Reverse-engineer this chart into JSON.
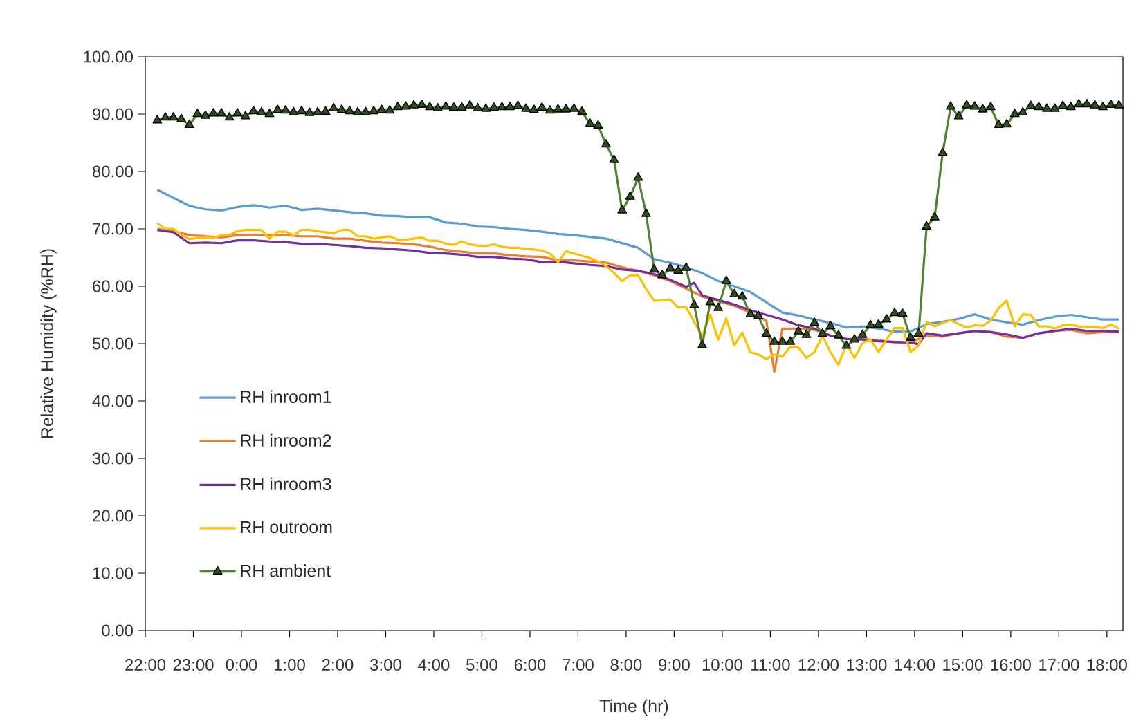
{
  "chart_data": {
    "type": "line",
    "xlabel": "Time (hr)",
    "ylabel": "Relative Humidity (%RH)",
    "xlim": [
      "2000-01-01T22:00",
      "2000-01-02T18:20"
    ],
    "ylim": [
      0,
      100
    ],
    "xticks": [
      {
        "value": "2000-01-01T22:00",
        "label": "22:00"
      },
      {
        "value": "2000-01-01T23:00",
        "label": "23:00"
      },
      {
        "value": "2000-01-02T00:00",
        "label": "0:00"
      },
      {
        "value": "2000-01-02T01:00",
        "label": "1:00"
      },
      {
        "value": "2000-01-02T02:00",
        "label": "2:00"
      },
      {
        "value": "2000-01-02T03:00",
        "label": "3:00"
      },
      {
        "value": "2000-01-02T04:00",
        "label": "4:00"
      },
      {
        "value": "2000-01-02T05:00",
        "label": "5:00"
      },
      {
        "value": "2000-01-02T06:00",
        "label": "6:00"
      },
      {
        "value": "2000-01-02T07:00",
        "label": "7:00"
      },
      {
        "value": "2000-01-02T08:00",
        "label": "8:00"
      },
      {
        "value": "2000-01-02T09:00",
        "label": "9:00"
      },
      {
        "value": "2000-01-02T10:00",
        "label": "10:00"
      },
      {
        "value": "2000-01-02T11:00",
        "label": "11:00"
      },
      {
        "value": "2000-01-02T12:00",
        "label": "12:00"
      },
      {
        "value": "2000-01-02T13:00",
        "label": "13:00"
      },
      {
        "value": "2000-01-02T14:00",
        "label": "14:00"
      },
      {
        "value": "2000-01-02T15:00",
        "label": "15:00"
      },
      {
        "value": "2000-01-02T16:00",
        "label": "16:00"
      },
      {
        "value": "2000-01-02T17:00",
        "label": "17:00"
      },
      {
        "value": "2000-01-02T18:00",
        "label": "18:00"
      }
    ],
    "yticks": [
      {
        "value": 0,
        "label": "0.00"
      },
      {
        "value": 10,
        "label": "10.00"
      },
      {
        "value": 20,
        "label": "20.00"
      },
      {
        "value": 30,
        "label": "30.00"
      },
      {
        "value": 40,
        "label": "40.00"
      },
      {
        "value": 50,
        "label": "50.00"
      },
      {
        "value": 60,
        "label": "60.00"
      },
      {
        "value": 70,
        "label": "70.00"
      },
      {
        "value": 80,
        "label": "80.00"
      },
      {
        "value": 90,
        "label": "90.00"
      },
      {
        "value": 100,
        "label": "100.00"
      }
    ],
    "legend": "bottom left",
    "grid": false,
    "x": [
      "2000-01-01T22:15",
      "2000-01-01T22:25",
      "2000-01-01T22:35",
      "2000-01-01T22:45",
      "2000-01-01T22:55",
      "2000-01-01T23:05",
      "2000-01-01T23:15",
      "2000-01-01T23:25",
      "2000-01-01T23:35",
      "2000-01-01T23:45",
      "2000-01-01T23:55",
      "2000-01-02T00:05",
      "2000-01-02T00:15",
      "2000-01-02T00:25",
      "2000-01-02T00:35",
      "2000-01-02T00:45",
      "2000-01-02T00:55",
      "2000-01-02T01:05",
      "2000-01-02T01:15",
      "2000-01-02T01:25",
      "2000-01-02T01:35",
      "2000-01-02T01:45",
      "2000-01-02T01:55",
      "2000-01-02T02:05",
      "2000-01-02T02:15",
      "2000-01-02T02:25",
      "2000-01-02T02:35",
      "2000-01-02T02:45",
      "2000-01-02T02:55",
      "2000-01-02T03:05",
      "2000-01-02T03:15",
      "2000-01-02T03:25",
      "2000-01-02T03:35",
      "2000-01-02T03:45",
      "2000-01-02T03:55",
      "2000-01-02T04:05",
      "2000-01-02T04:15",
      "2000-01-02T04:25",
      "2000-01-02T04:35",
      "2000-01-02T04:45",
      "2000-01-02T04:55",
      "2000-01-02T05:05",
      "2000-01-02T05:15",
      "2000-01-02T05:25",
      "2000-01-02T05:35",
      "2000-01-02T05:45",
      "2000-01-02T05:55",
      "2000-01-02T06:05",
      "2000-01-02T06:15",
      "2000-01-02T06:25",
      "2000-01-02T06:35",
      "2000-01-02T06:45",
      "2000-01-02T06:55",
      "2000-01-02T07:05",
      "2000-01-02T07:15",
      "2000-01-02T07:25",
      "2000-01-02T07:35",
      "2000-01-02T07:45",
      "2000-01-02T07:55",
      "2000-01-02T08:05",
      "2000-01-02T08:15",
      "2000-01-02T08:25",
      "2000-01-02T08:35",
      "2000-01-02T08:45",
      "2000-01-02T08:55",
      "2000-01-02T09:05",
      "2000-01-02T09:15",
      "2000-01-02T09:25",
      "2000-01-02T09:35",
      "2000-01-02T09:45",
      "2000-01-02T09:55",
      "2000-01-02T10:05",
      "2000-01-02T10:15",
      "2000-01-02T10:25",
      "2000-01-02T10:35",
      "2000-01-02T10:45",
      "2000-01-02T10:55",
      "2000-01-02T11:05",
      "2000-01-02T11:15",
      "2000-01-02T11:25",
      "2000-01-02T11:35",
      "2000-01-02T11:45",
      "2000-01-02T11:55",
      "2000-01-02T12:05",
      "2000-01-02T12:15",
      "2000-01-02T12:25",
      "2000-01-02T12:35",
      "2000-01-02T12:45",
      "2000-01-02T12:55",
      "2000-01-02T13:05",
      "2000-01-02T13:15",
      "2000-01-02T13:25",
      "2000-01-02T13:35",
      "2000-01-02T13:45",
      "2000-01-02T13:55",
      "2000-01-02T14:05",
      "2000-01-02T14:15",
      "2000-01-02T14:25",
      "2000-01-02T14:35",
      "2000-01-02T14:45",
      "2000-01-02T14:55",
      "2000-01-02T15:05",
      "2000-01-02T15:15",
      "2000-01-02T15:25",
      "2000-01-02T15:35",
      "2000-01-02T15:45",
      "2000-01-02T15:55",
      "2000-01-02T16:05",
      "2000-01-02T16:15",
      "2000-01-02T16:25",
      "2000-01-02T16:35",
      "2000-01-02T16:45",
      "2000-01-02T16:55",
      "2000-01-02T17:05",
      "2000-01-02T17:15",
      "2000-01-02T17:25",
      "2000-01-02T17:35",
      "2000-01-02T17:45",
      "2000-01-02T17:55",
      "2000-01-02T18:05",
      "2000-01-02T18:15"
    ],
    "series": [
      {
        "name": "RH inroom1",
        "color": "#5b9bd5",
        "x": [
          "2000-01-01T22:15",
          "2000-01-01T22:35",
          "2000-01-01T22:55",
          "2000-01-01T23:15",
          "2000-01-01T23:35",
          "2000-01-01T23:55",
          "2000-01-02T00:15",
          "2000-01-02T00:35",
          "2000-01-02T00:55",
          "2000-01-02T01:15",
          "2000-01-02T01:35",
          "2000-01-02T01:55",
          "2000-01-02T02:15",
          "2000-01-02T02:35",
          "2000-01-02T02:55",
          "2000-01-02T03:15",
          "2000-01-02T03:35",
          "2000-01-02T03:55",
          "2000-01-02T04:15",
          "2000-01-02T04:35",
          "2000-01-02T04:55",
          "2000-01-02T05:15",
          "2000-01-02T05:35",
          "2000-01-02T05:55",
          "2000-01-02T06:15",
          "2000-01-02T06:35",
          "2000-01-02T06:55",
          "2000-01-02T07:15",
          "2000-01-02T07:35",
          "2000-01-02T07:55",
          "2000-01-02T08:15",
          "2000-01-02T08:35",
          "2000-01-02T08:55",
          "2000-01-02T09:15",
          "2000-01-02T09:35",
          "2000-01-02T09:55",
          "2000-01-02T10:15",
          "2000-01-02T10:35",
          "2000-01-02T10:55",
          "2000-01-02T11:15",
          "2000-01-02T11:35",
          "2000-01-02T11:55",
          "2000-01-02T12:15",
          "2000-01-02T12:35",
          "2000-01-02T12:55",
          "2000-01-02T13:15",
          "2000-01-02T13:35",
          "2000-01-02T13:55",
          "2000-01-02T14:15",
          "2000-01-02T14:35",
          "2000-01-02T14:55",
          "2000-01-02T15:15",
          "2000-01-02T15:35",
          "2000-01-02T15:55",
          "2000-01-02T16:15",
          "2000-01-02T16:35",
          "2000-01-02T16:55",
          "2000-01-02T17:15",
          "2000-01-02T17:35",
          "2000-01-02T17:55",
          "2000-01-02T18:15"
        ],
        "values": [
          76.8,
          75.4,
          74.0,
          73.4,
          73.2,
          73.8,
          74.1,
          73.7,
          74.0,
          73.3,
          73.5,
          73.2,
          72.9,
          72.7,
          72.3,
          72.2,
          72.0,
          72.0,
          71.1,
          70.9,
          70.4,
          70.3,
          70.0,
          69.8,
          69.5,
          69.1,
          68.9,
          68.6,
          68.3,
          67.5,
          66.7,
          64.7,
          64.1,
          63.3,
          62.3,
          60.9,
          60.0,
          59.0,
          57.2,
          55.4,
          54.9,
          54.2,
          53.6,
          52.8,
          53.0,
          52.6,
          52.1,
          52.1,
          53.4,
          53.8,
          54.3,
          55.1,
          54.2,
          53.7,
          53.3,
          54.1,
          54.7,
          55.0,
          54.6,
          54.2,
          54.2
        ]
      },
      {
        "name": "RH inroom2",
        "color": "#ed7d31",
        "x": [
          "2000-01-01T22:15",
          "2000-01-01T22:35",
          "2000-01-01T22:55",
          "2000-01-01T23:15",
          "2000-01-01T23:35",
          "2000-01-01T23:55",
          "2000-01-02T00:15",
          "2000-01-02T00:35",
          "2000-01-02T00:55",
          "2000-01-02T01:15",
          "2000-01-02T01:35",
          "2000-01-02T01:55",
          "2000-01-02T02:15",
          "2000-01-02T02:35",
          "2000-01-02T02:55",
          "2000-01-02T03:15",
          "2000-01-02T03:35",
          "2000-01-02T03:55",
          "2000-01-02T04:15",
          "2000-01-02T04:35",
          "2000-01-02T04:55",
          "2000-01-02T05:15",
          "2000-01-02T05:35",
          "2000-01-02T05:55",
          "2000-01-02T06:15",
          "2000-01-02T06:35",
          "2000-01-02T06:55",
          "2000-01-02T07:15",
          "2000-01-02T07:35",
          "2000-01-02T07:55",
          "2000-01-02T08:15",
          "2000-01-02T08:35",
          "2000-01-02T08:55",
          "2000-01-02T09:15",
          "2000-01-02T09:35",
          "2000-01-02T09:55",
          "2000-01-02T10:15",
          "2000-01-02T10:35",
          "2000-01-02T10:55",
          "2000-01-02T11:05",
          "2000-01-02T11:15",
          "2000-01-02T11:35",
          "2000-01-02T11:55",
          "2000-01-02T12:15",
          "2000-01-02T12:35",
          "2000-01-02T12:55",
          "2000-01-02T13:15",
          "2000-01-02T13:35",
          "2000-01-02T13:55",
          "2000-01-02T14:15",
          "2000-01-02T14:35",
          "2000-01-02T14:55",
          "2000-01-02T15:15",
          "2000-01-02T15:35",
          "2000-01-02T15:55",
          "2000-01-02T16:15",
          "2000-01-02T16:35",
          "2000-01-02T16:55",
          "2000-01-02T17:15",
          "2000-01-02T17:35",
          "2000-01-02T17:55",
          "2000-01-02T18:15"
        ],
        "values": [
          70.0,
          69.6,
          68.9,
          68.7,
          68.5,
          68.9,
          69.0,
          68.9,
          68.9,
          68.7,
          68.7,
          68.3,
          68.3,
          67.9,
          67.6,
          67.5,
          67.3,
          66.9,
          66.3,
          66.0,
          65.7,
          65.7,
          65.4,
          65.2,
          65.1,
          64.5,
          64.5,
          64.3,
          64.1,
          63.3,
          62.7,
          61.9,
          60.9,
          59.6,
          58.2,
          57.4,
          56.6,
          55.4,
          54.0,
          45.1,
          52.6,
          52.6,
          52.4,
          51.4,
          50.8,
          50.8,
          50.6,
          50.2,
          50.2,
          51.4,
          51.2,
          51.8,
          52.2,
          52.0,
          51.2,
          51.0,
          51.8,
          52.2,
          52.4,
          51.8,
          52.0,
          52.0
        ]
      },
      {
        "name": "RH inroom3",
        "color": "#7030a0",
        "x": [
          "2000-01-01T22:15",
          "2000-01-01T22:35",
          "2000-01-01T22:55",
          "2000-01-01T23:15",
          "2000-01-01T23:35",
          "2000-01-01T23:55",
          "2000-01-02T00:15",
          "2000-01-02T00:35",
          "2000-01-02T00:55",
          "2000-01-02T01:15",
          "2000-01-02T01:35",
          "2000-01-02T01:55",
          "2000-01-02T02:15",
          "2000-01-02T02:35",
          "2000-01-02T02:55",
          "2000-01-02T03:15",
          "2000-01-02T03:35",
          "2000-01-02T03:55",
          "2000-01-02T04:15",
          "2000-01-02T04:35",
          "2000-01-02T04:55",
          "2000-01-02T05:15",
          "2000-01-02T05:35",
          "2000-01-02T05:55",
          "2000-01-02T06:15",
          "2000-01-02T06:35",
          "2000-01-02T06:55",
          "2000-01-02T07:15",
          "2000-01-02T07:35",
          "2000-01-02T07:55",
          "2000-01-02T08:15",
          "2000-01-02T08:35",
          "2000-01-02T08:55",
          "2000-01-02T09:15",
          "2000-01-02T09:25",
          "2000-01-02T09:35",
          "2000-01-02T09:55",
          "2000-01-02T10:15",
          "2000-01-02T10:35",
          "2000-01-02T10:55",
          "2000-01-02T11:15",
          "2000-01-02T11:35",
          "2000-01-02T11:55",
          "2000-01-02T12:15",
          "2000-01-02T12:35",
          "2000-01-02T12:55",
          "2000-01-02T13:15",
          "2000-01-02T13:35",
          "2000-01-02T13:55",
          "2000-01-02T14:05",
          "2000-01-02T14:15",
          "2000-01-02T14:35",
          "2000-01-02T14:55",
          "2000-01-02T15:15",
          "2000-01-02T15:35",
          "2000-01-02T15:55",
          "2000-01-02T16:15",
          "2000-01-02T16:35",
          "2000-01-02T16:55",
          "2000-01-02T17:15",
          "2000-01-02T17:35",
          "2000-01-02T17:55",
          "2000-01-02T18:15"
        ],
        "values": [
          69.8,
          69.4,
          67.5,
          67.6,
          67.5,
          68.0,
          68.0,
          67.8,
          67.7,
          67.4,
          67.4,
          67.2,
          67.0,
          66.7,
          66.6,
          66.4,
          66.2,
          65.8,
          65.7,
          65.5,
          65.1,
          65.1,
          64.8,
          64.7,
          64.2,
          64.3,
          64.0,
          63.7,
          63.5,
          62.9,
          62.7,
          62.1,
          61.1,
          59.9,
          60.6,
          58.4,
          57.6,
          56.8,
          55.8,
          55.0,
          54.2,
          53.2,
          52.6,
          51.4,
          50.8,
          50.7,
          50.4,
          50.3,
          50.2,
          49.9,
          51.8,
          51.4,
          51.8,
          52.2,
          52.0,
          51.6,
          51.0,
          51.8,
          52.2,
          52.6,
          52.2,
          52.2,
          52.1
        ]
      },
      {
        "name": "RH outroom",
        "color": "#ffc000",
        "values": [
          71.0,
          70.0,
          70.0,
          68.9,
          68.2,
          68.4,
          68.5,
          68.4,
          68.9,
          68.9,
          69.6,
          69.8,
          69.8,
          69.8,
          68.3,
          69.5,
          69.5,
          68.9,
          69.8,
          69.8,
          69.6,
          69.4,
          69.2,
          69.8,
          69.8,
          68.7,
          68.7,
          68.3,
          68.5,
          68.7,
          68.1,
          68.1,
          68.3,
          68.5,
          67.9,
          67.9,
          67.4,
          67.2,
          67.8,
          67.3,
          67.1,
          67.0,
          67.3,
          66.9,
          66.7,
          66.7,
          66.5,
          66.4,
          66.2,
          65.7,
          64.2,
          66.1,
          65.7,
          65.3,
          64.9,
          64.3,
          63.5,
          62.3,
          60.9,
          61.9,
          61.9,
          59.5,
          57.5,
          57.5,
          57.7,
          56.3,
          56.3,
          53.8,
          51.3,
          55.0,
          50.7,
          54.4,
          49.7,
          51.9,
          48.5,
          48.1,
          47.3,
          48.1,
          47.7,
          49.5,
          49.3,
          47.5,
          48.5,
          51.4,
          48.5,
          46.3,
          49.9,
          47.5,
          50.1,
          50.7,
          48.5,
          50.7,
          52.7,
          52.7,
          48.5,
          49.7,
          53.8,
          53.0,
          53.6,
          54.1,
          53.4,
          52.8,
          53.2,
          53.1,
          54.0,
          56.2,
          57.5,
          53.0,
          55.1,
          55.0,
          53.0,
          53.0,
          52.6,
          53.2,
          53.3,
          53.0,
          52.9,
          52.9,
          52.7,
          53.3,
          52.6
        ]
      },
      {
        "name": "RH ambient",
        "color": "#548235",
        "marker": "triangle",
        "values": [
          88.9,
          89.4,
          89.4,
          89.1,
          88.1,
          90.0,
          89.7,
          90.1,
          90.1,
          89.4,
          90.1,
          89.6,
          90.5,
          90.3,
          90.0,
          90.7,
          90.6,
          90.3,
          90.5,
          90.2,
          90.3,
          90.4,
          91.0,
          90.7,
          90.5,
          90.3,
          90.3,
          90.5,
          90.7,
          90.6,
          91.2,
          91.3,
          91.5,
          91.6,
          91.2,
          91.0,
          91.3,
          91.1,
          91.1,
          91.5,
          91.0,
          90.9,
          91.1,
          91.2,
          91.2,
          91.4,
          90.9,
          90.7,
          91.1,
          90.6,
          90.8,
          90.8,
          90.9,
          90.4,
          88.3,
          88.0,
          84.7,
          82.0,
          73.2,
          75.6,
          78.9,
          72.6,
          62.9,
          61.9,
          63.1,
          62.7,
          63.2,
          56.7,
          49.7,
          57.2,
          56.2,
          60.9,
          58.6,
          58.2,
          55.1,
          54.8,
          51.7,
          50.3,
          50.3,
          50.3,
          52.1,
          51.5,
          53.6,
          51.7,
          53.0,
          51.4,
          49.6,
          50.7,
          51.5,
          53.2,
          53.3,
          54.2,
          55.3,
          55.2,
          51.0,
          51.7,
          70.4,
          72.0,
          83.2,
          91.3,
          89.6,
          91.5,
          91.3,
          90.8,
          91.2,
          88.1,
          88.2,
          90.0,
          90.3,
          91.4,
          91.2,
          90.9,
          90.9,
          91.4,
          91.2,
          91.7,
          91.7,
          91.5,
          91.2,
          91.6,
          91.5
        ]
      }
    ]
  }
}
